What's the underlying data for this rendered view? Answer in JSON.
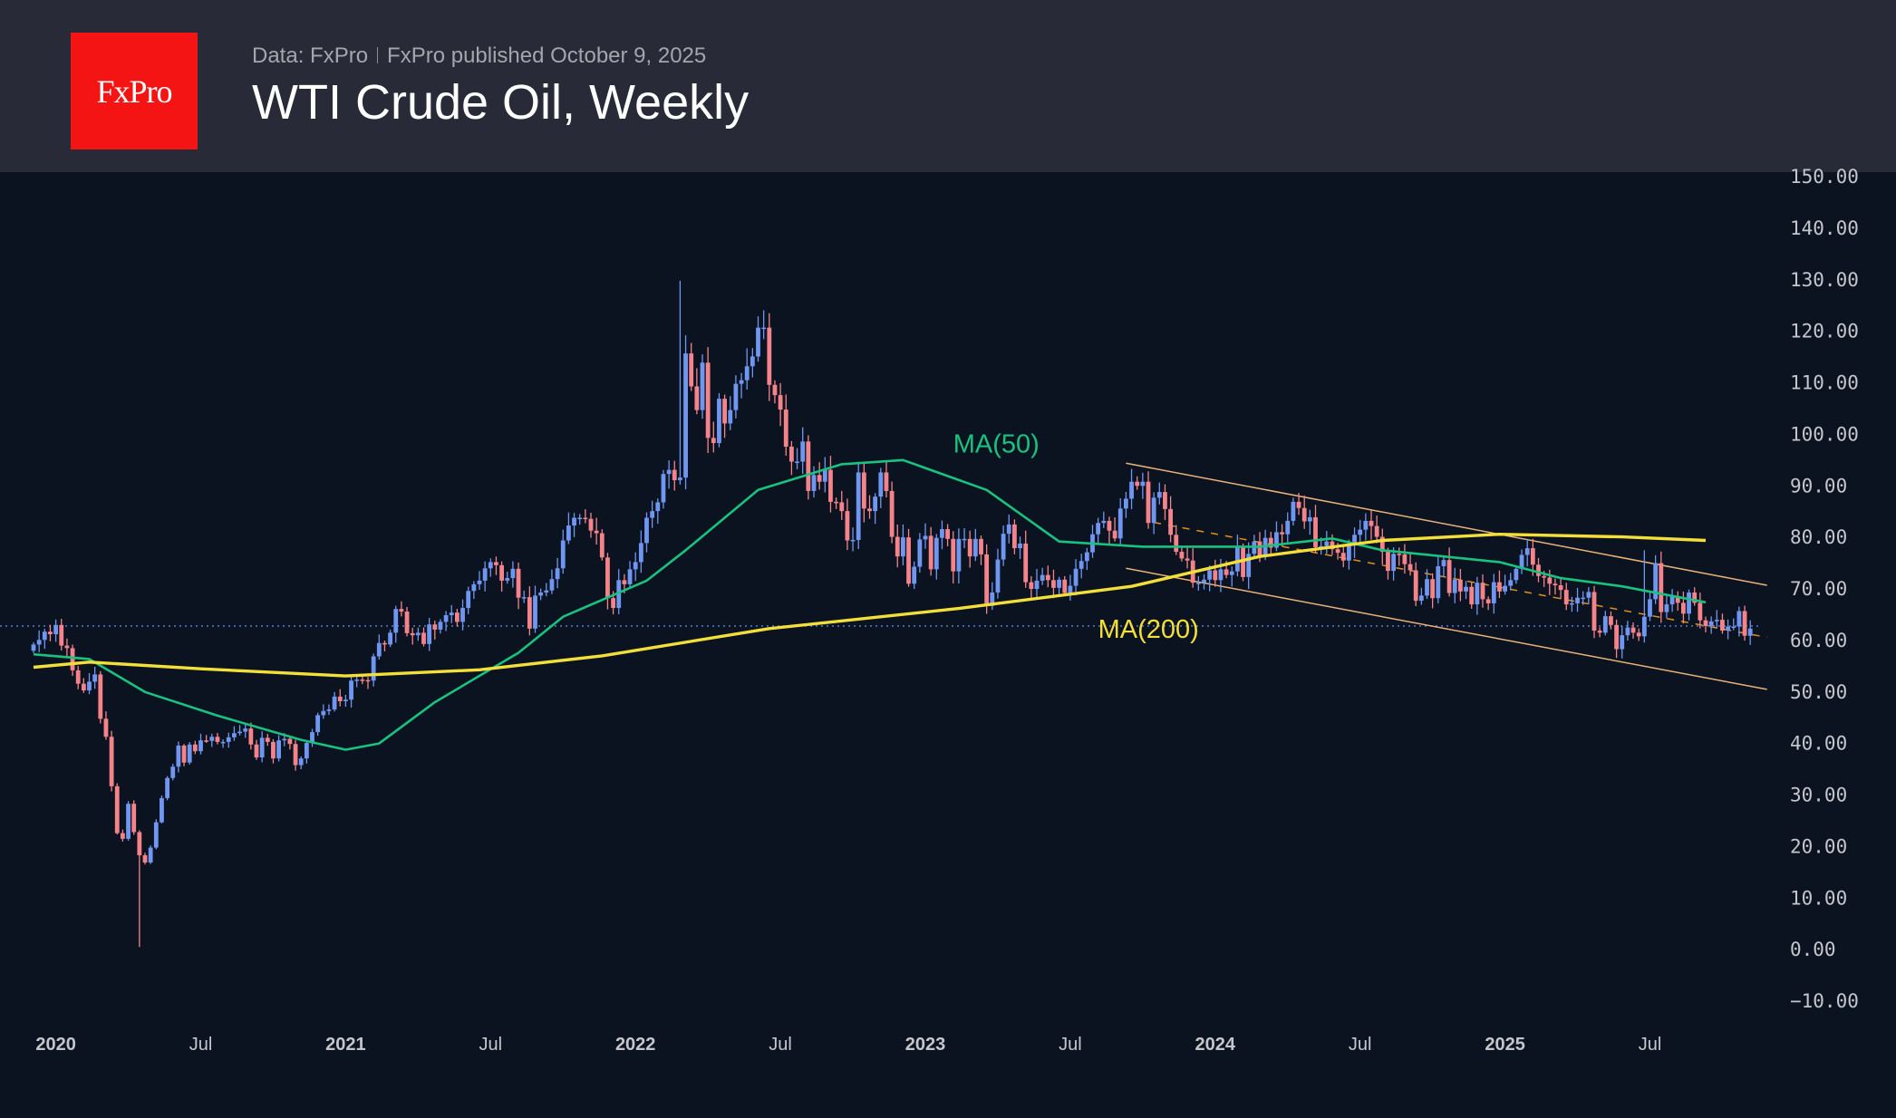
{
  "header": {
    "logo_text": "FxPro",
    "data_source": "Data: FxPro",
    "published": "FxPro published October 9, 2025",
    "title": "WTI Crude Oil, Weekly"
  },
  "colors": {
    "up": "#6f97f2",
    "down": "#f5848a",
    "ma50": "#19c27f",
    "ma200": "#f2df3a",
    "channel": "#e9b27c",
    "midline": "#e0901c",
    "price_line": "#5f85d8"
  },
  "chart_data": {
    "type": "candlestick",
    "title": "WTI Crude Oil, Weekly",
    "ylim": [
      -10,
      150
    ],
    "y_ticks": [
      "150.00",
      "140.00",
      "130.00",
      "120.00",
      "110.00",
      "100.00",
      "90.00",
      "80.00",
      "70.00",
      "60.00",
      "50.00",
      "40.00",
      "30.00",
      "20.00",
      "10.00",
      "0.00",
      "−10.00"
    ],
    "y_tick_values": [
      150,
      140,
      130,
      120,
      110,
      100,
      90,
      80,
      70,
      60,
      50,
      40,
      30,
      20,
      10,
      0,
      -10
    ],
    "x_ticks": [
      {
        "label": "2020",
        "week": 4,
        "year": true
      },
      {
        "label": "Jul",
        "week": 30
      },
      {
        "label": "2021",
        "week": 56,
        "year": true
      },
      {
        "label": "Jul",
        "week": 82
      },
      {
        "label": "2022",
        "week": 108,
        "year": true
      },
      {
        "label": "Jul",
        "week": 134
      },
      {
        "label": "2023",
        "week": 160,
        "year": true
      },
      {
        "label": "Jul",
        "week": 186
      },
      {
        "label": "2024",
        "week": 212,
        "year": true
      },
      {
        "label": "Jul",
        "week": 238
      },
      {
        "label": "2025",
        "week": 264,
        "year": true
      },
      {
        "label": "Jul",
        "week": 290
      }
    ],
    "first_open": 58.0,
    "weekly_close": [
      59.2,
      60.1,
      61.7,
      61.2,
      63.0,
      59.0,
      58.5,
      54.2,
      51.6,
      50.3,
      52.0,
      53.4,
      44.8,
      41.3,
      31.7,
      22.6,
      21.5,
      28.3,
      22.8,
      18.3,
      16.9,
      19.8,
      24.7,
      29.4,
      33.3,
      35.5,
      39.6,
      36.3,
      39.8,
      38.5,
      40.6,
      40.5,
      41.3,
      40.3,
      40.3,
      41.2,
      42.0,
      42.3,
      42.9,
      39.8,
      37.3,
      41.1,
      40.3,
      37.1,
      40.6,
      40.9,
      39.9,
      35.8,
      37.1,
      40.1,
      42.2,
      45.5,
      46.3,
      46.6,
      49.1,
      48.2,
      48.5,
      52.2,
      52.4,
      52.3,
      52.2,
      56.9,
      59.5,
      59.2,
      61.5,
      66.1,
      65.6,
      61.4,
      61.0,
      61.5,
      59.3,
      63.1,
      62.1,
      63.6,
      64.9,
      65.4,
      63.6,
      66.3,
      69.6,
      70.9,
      71.6,
      74.0,
      75.2,
      74.6,
      71.6,
      72.1,
      73.9,
      68.3,
      68.4,
      62.3,
      68.7,
      69.3,
      69.7,
      71.9,
      74.0,
      79.4,
      82.3,
      83.8,
      83.8,
      83.6,
      81.3,
      80.8,
      76.1,
      68.2,
      66.3,
      71.7,
      70.9,
      73.8,
      75.2,
      78.9,
      83.8,
      85.1,
      86.8,
      92.3,
      93.1,
      91.1,
      91.6,
      115.7,
      109.3,
      104.7,
      113.9,
      99.3,
      98.3,
      106.9,
      102.1,
      104.7,
      109.8,
      110.5,
      113.2,
      115.1,
      120.7,
      120.7,
      109.6,
      107.6,
      104.8,
      97.6,
      94.7,
      94.7,
      98.6,
      89.0,
      92.1,
      90.8,
      93.1,
      86.9,
      86.8,
      85.1,
      79.4,
      79.5,
      92.6,
      85.6,
      85.1,
      87.9,
      92.6,
      89.0,
      80.1,
      76.3,
      80.0,
      71.0,
      74.3,
      79.6,
      80.3,
      73.8,
      79.9,
      81.6,
      79.7,
      73.4,
      79.7,
      79.7,
      76.3,
      79.7,
      76.7,
      66.7,
      69.3,
      75.7,
      80.7,
      82.5,
      77.9,
      78.8,
      71.3,
      70.0,
      71.6,
      72.7,
      71.7,
      70.2,
      71.8,
      69.2,
      70.6,
      73.9,
      75.4,
      77.1,
      80.6,
      82.8,
      83.2,
      81.3,
      79.8,
      85.6,
      87.5,
      90.8,
      90.0,
      90.8,
      82.8,
      87.7,
      88.8,
      85.5,
      80.5,
      77.2,
      75.9,
      75.5,
      71.2,
      71.2,
      71.8,
      73.6,
      71.7,
      73.8,
      72.7,
      73.4,
      78.0,
      72.3,
      76.8,
      79.2,
      76.5,
      79.9,
      78.0,
      81.0,
      80.6,
      83.2,
      86.9,
      85.7,
      83.1,
      83.9,
      78.1,
      78.3,
      79.2,
      77.7,
      77.0,
      75.5,
      78.5,
      80.5,
      81.5,
      83.2,
      82.2,
      80.1,
      77.2,
      73.5,
      76.8,
      76.7,
      74.8,
      73.6,
      67.7,
      68.7,
      71.9,
      68.2,
      74.4,
      75.6,
      69.2,
      71.8,
      69.5,
      70.4,
      67.0,
      71.2,
      68.0,
      67.2,
      71.3,
      69.5,
      70.6,
      71.7,
      73.9,
      76.6,
      77.9,
      74.7,
      72.5,
      72.2,
      71.0,
      70.7,
      69.8,
      67.0,
      67.2,
      68.3,
      68.3,
      69.4,
      61.9,
      61.5,
      64.7,
      63.0,
      58.3,
      61.0,
      62.5,
      61.5,
      60.8,
      64.6,
      68.0,
      75.0,
      65.5,
      67.0,
      68.5,
      67.3,
      65.2,
      69.3,
      67.3,
      63.9,
      62.8,
      63.7,
      64.0,
      61.9,
      62.7,
      62.7,
      65.7,
      60.9,
      62.3
    ],
    "extreme_wicks": [
      {
        "week": 19,
        "low": 0.5
      },
      {
        "week": 116,
        "high": 129.8
      },
      {
        "week": 132,
        "high": 123.5
      },
      {
        "week": 289,
        "high": 77.5
      }
    ],
    "current_price": 62.8,
    "series": [
      {
        "name": "MA(50)",
        "label": "MA(50)",
        "label_at": [
          165,
          96.5
        ],
        "points": [
          [
            0,
            57.3
          ],
          [
            10,
            56.4
          ],
          [
            20,
            50
          ],
          [
            33,
            45.4
          ],
          [
            48,
            40.7
          ],
          [
            56,
            38.8
          ],
          [
            62,
            40
          ],
          [
            72,
            48
          ],
          [
            87,
            57.6
          ],
          [
            95,
            64.6
          ],
          [
            110,
            71.6
          ],
          [
            117,
            77.5
          ],
          [
            130,
            89.2
          ],
          [
            145,
            94.2
          ],
          [
            156,
            95
          ],
          [
            171,
            89.2
          ],
          [
            184,
            79.2
          ],
          [
            199,
            78.2
          ],
          [
            220,
            78.2
          ],
          [
            233,
            79.8
          ],
          [
            242,
            77.5
          ],
          [
            263,
            75.2
          ],
          [
            274,
            72.1
          ],
          [
            285,
            70.5
          ],
          [
            300,
            67.4
          ]
        ]
      },
      {
        "name": "MA(200)",
        "label": "MA(200)",
        "label_at": [
          191,
          60.5
        ],
        "points": [
          [
            0,
            54.8
          ],
          [
            10,
            55.8
          ],
          [
            30,
            54.5
          ],
          [
            56,
            53.1
          ],
          [
            80,
            54.3
          ],
          [
            102,
            57
          ],
          [
            132,
            62.3
          ],
          [
            166,
            66.2
          ],
          [
            197,
            70.5
          ],
          [
            220,
            76.3
          ],
          [
            242,
            79.4
          ],
          [
            263,
            80.6
          ],
          [
            285,
            80.1
          ],
          [
            300,
            79.4
          ]
        ]
      }
    ],
    "channel": {
      "upper": [
        [
          196,
          94.4
        ],
        [
          311,
          70.7
        ]
      ],
      "lower": [
        [
          196,
          74.0
        ],
        [
          311,
          50.5
        ]
      ],
      "mid": [
        [
          201,
          82.9
        ],
        [
          311,
          60.6
        ]
      ]
    }
  }
}
